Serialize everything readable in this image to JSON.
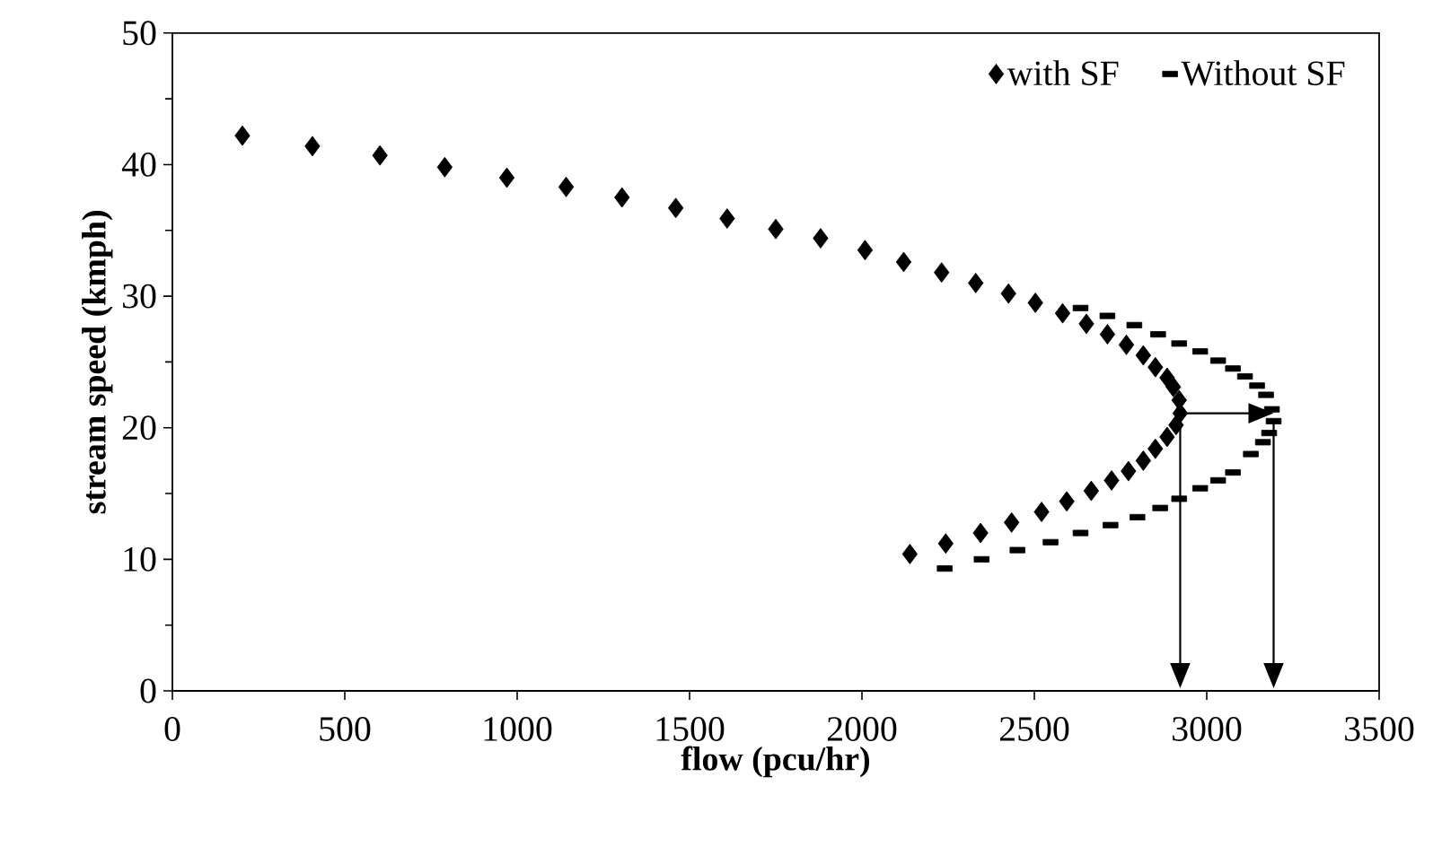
{
  "chart_data": {
    "type": "scatter",
    "xlabel": "flow (pcu/hr)",
    "ylabel": "stream speed (kmph)",
    "xlim": [
      0,
      3500
    ],
    "xticks": [
      0,
      500,
      1000,
      1500,
      2000,
      2500,
      3000,
      3500
    ],
    "ylim": [
      0,
      50
    ],
    "yticks": [
      0,
      10,
      20,
      30,
      40,
      50
    ],
    "legend": "top right",
    "series": [
      {
        "name": "with SF",
        "color": "#000000",
        "marker": "diamond",
        "x": [
          203,
          406,
          602,
          790,
          970,
          1142,
          1304,
          1460,
          1609,
          1750,
          1880,
          2009,
          2121,
          2231,
          2330,
          2425,
          2503,
          2582,
          2651,
          2712,
          2767,
          2816,
          2851,
          2885,
          2903,
          2920,
          2923,
          2911,
          2885,
          2851,
          2816,
          2773,
          2724,
          2665,
          2594,
          2521,
          2434,
          2344,
          2243,
          2139
        ],
        "values": [
          42.2,
          41.4,
          40.7,
          39.8,
          39.0,
          38.3,
          37.5,
          36.7,
          35.9,
          35.1,
          34.4,
          33.5,
          32.6,
          31.8,
          31.0,
          30.2,
          29.5,
          28.7,
          27.9,
          27.1,
          26.3,
          25.5,
          24.6,
          23.8,
          23.1,
          22.1,
          21.1,
          20.2,
          19.3,
          18.4,
          17.5,
          16.7,
          16.0,
          15.2,
          14.4,
          13.6,
          12.8,
          12.0,
          11.2,
          10.4
        ]
      },
      {
        "name": "Without SF",
        "color": "#000000",
        "marker": "square",
        "x": [
          2634,
          2712,
          2790,
          2859,
          2920,
          2981,
          3033,
          3076,
          3111,
          3146,
          3172,
          3189,
          3194,
          3181,
          3163,
          3128,
          3076,
          3033,
          2981,
          2920,
          2865,
          2799,
          2721,
          2634,
          2547,
          2451,
          2347,
          2240
        ],
        "values": [
          29.1,
          28.5,
          27.8,
          27.1,
          26.4,
          25.8,
          25.1,
          24.5,
          23.9,
          23.2,
          22.5,
          21.4,
          20.5,
          19.6,
          18.9,
          18.0,
          16.6,
          16.0,
          15.4,
          14.6,
          13.9,
          13.2,
          12.6,
          12.0,
          11.3,
          10.7,
          10.0,
          9.3
        ]
      }
    ]
  }
}
